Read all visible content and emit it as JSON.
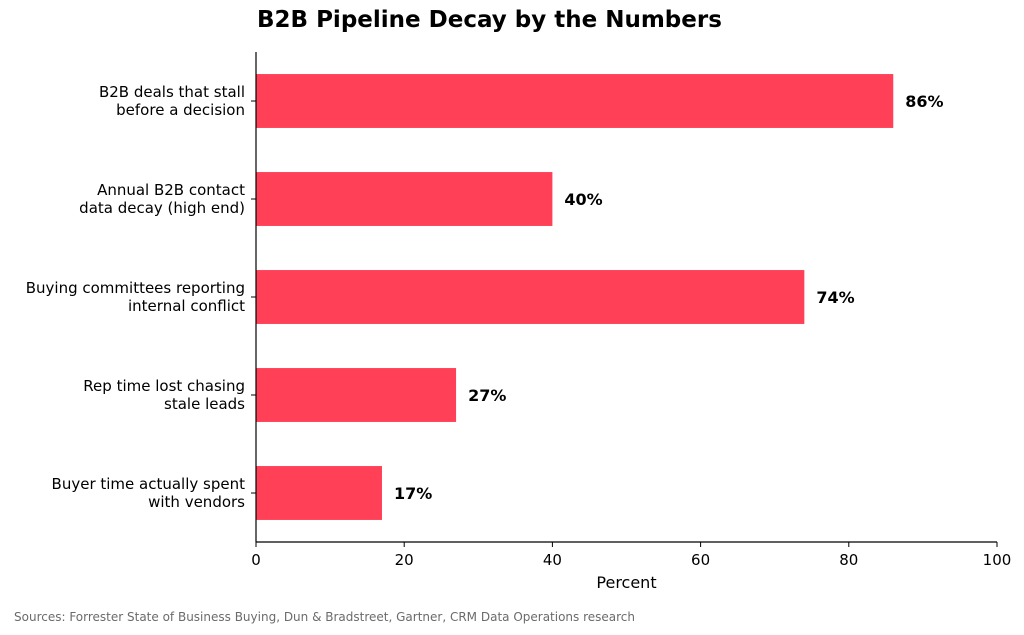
{
  "chart_data": {
    "type": "bar",
    "orientation": "horizontal",
    "title": "B2B Pipeline Decay by the Numbers",
    "xlabel": "Percent",
    "ylabel": "",
    "categories": [
      [
        "B2B deals that stall",
        "before a decision"
      ],
      [
        "Annual B2B contact",
        "data decay (high end)"
      ],
      [
        "Buying committees reporting",
        "internal conflict"
      ],
      [
        "Rep time lost chasing",
        "stale leads"
      ],
      [
        "Buyer time actually spent",
        "with vendors"
      ]
    ],
    "values": [
      86,
      40,
      74,
      27,
      17
    ],
    "data_labels": [
      "86%",
      "40%",
      "74%",
      "27%",
      "17%"
    ],
    "xlim": [
      0,
      100
    ],
    "xticks": [
      0,
      20,
      40,
      60,
      80,
      100
    ],
    "xtick_labels": [
      "0",
      "20",
      "40",
      "60",
      "80",
      "100"
    ],
    "bar_color": "#ff4056",
    "grid": false,
    "legend": "none"
  },
  "source_note": "Sources: Forrester State of Business Buying, Dun & Bradstreet, Gartner, CRM Data Operations research"
}
